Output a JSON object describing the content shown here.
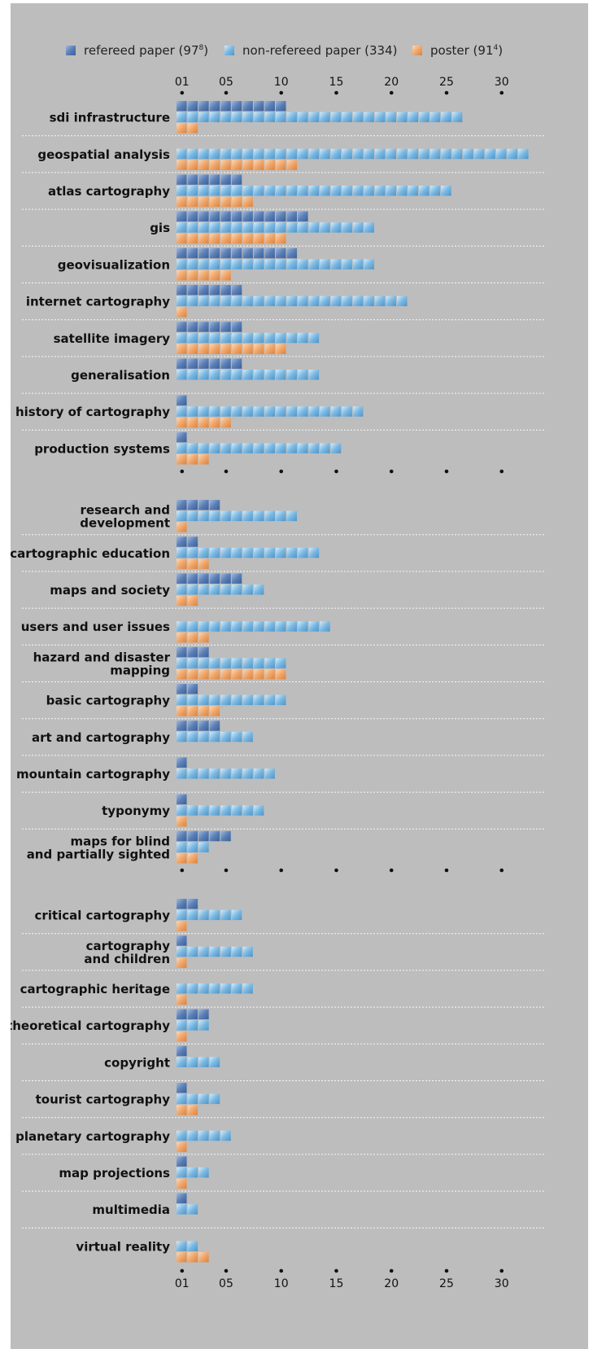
{
  "chart_data": {
    "type": "bar",
    "orientation": "horizontal",
    "legend_position": "top",
    "grid": false,
    "xlim": [
      0,
      32
    ],
    "x_ticks": [
      "01",
      "05",
      "10",
      "15",
      "20",
      "25",
      "30"
    ],
    "x_tick_values": [
      1,
      5,
      10,
      15,
      20,
      25,
      30
    ],
    "series": [
      {
        "name": "refereed paper",
        "legend_count": "97",
        "legend_sup": "8",
        "color": "#5a7fb6"
      },
      {
        "name": "non-refereed paper",
        "legend_count": "334",
        "legend_sup": "",
        "color": "#7ab8e2"
      },
      {
        "name": "poster",
        "legend_count": "91",
        "legend_sup": "4",
        "color": "#f0a66a"
      }
    ],
    "categories": [
      {
        "label": [
          "sdi infrastructure"
        ],
        "values": [
          10,
          26,
          2
        ]
      },
      {
        "label": [
          "geospatial analysis"
        ],
        "values": [
          0,
          32,
          11
        ]
      },
      {
        "label": [
          "atlas cartography"
        ],
        "values": [
          6,
          25,
          7
        ]
      },
      {
        "label": [
          "gis"
        ],
        "values": [
          12,
          18,
          10
        ]
      },
      {
        "label": [
          "geovisualization"
        ],
        "values": [
          11,
          18,
          5
        ]
      },
      {
        "label": [
          "internet cartography"
        ],
        "values": [
          6,
          21,
          1
        ]
      },
      {
        "label": [
          "satellite imagery"
        ],
        "values": [
          6,
          13,
          10
        ]
      },
      {
        "label": [
          "generalisation"
        ],
        "values": [
          6,
          13,
          0
        ]
      },
      {
        "label": [
          "history of cartography"
        ],
        "values": [
          1,
          17,
          5
        ]
      },
      {
        "label": [
          "production systems"
        ],
        "values": [
          1,
          15,
          3
        ]
      },
      {
        "label": [
          "research and",
          "development"
        ],
        "values": [
          4,
          11,
          1
        ]
      },
      {
        "label": [
          "cartographic education"
        ],
        "values": [
          2,
          13,
          3
        ]
      },
      {
        "label": [
          "maps and society"
        ],
        "values": [
          6,
          8,
          2
        ]
      },
      {
        "label": [
          "users and user issues"
        ],
        "values": [
          0,
          14,
          3
        ]
      },
      {
        "label": [
          "hazard and disaster",
          "mapping"
        ],
        "values": [
          3,
          10,
          10
        ]
      },
      {
        "label": [
          "basic cartography"
        ],
        "values": [
          2,
          10,
          4
        ]
      },
      {
        "label": [
          "art and cartography"
        ],
        "values": [
          4,
          7,
          0
        ]
      },
      {
        "label": [
          "mountain cartography"
        ],
        "values": [
          1,
          9,
          0
        ]
      },
      {
        "label": [
          "typonymy"
        ],
        "values": [
          1,
          8,
          1
        ]
      },
      {
        "label": [
          "maps for blind",
          "and partially sighted"
        ],
        "values": [
          5,
          3,
          2
        ]
      },
      {
        "label": [
          "critical cartography"
        ],
        "values": [
          2,
          6,
          1
        ]
      },
      {
        "label": [
          "cartography",
          "and children"
        ],
        "values": [
          1,
          7,
          1
        ]
      },
      {
        "label": [
          "cartographic heritage"
        ],
        "values": [
          0,
          7,
          1
        ]
      },
      {
        "label": [
          "theoretical cartography"
        ],
        "values": [
          3,
          3,
          1
        ]
      },
      {
        "label": [
          "copyright"
        ],
        "values": [
          1,
          4,
          0
        ]
      },
      {
        "label": [
          "tourist cartography"
        ],
        "values": [
          1,
          4,
          2
        ]
      },
      {
        "label": [
          "planetary cartography"
        ],
        "values": [
          0,
          5,
          1
        ]
      },
      {
        "label": [
          "map projections"
        ],
        "values": [
          1,
          3,
          1
        ]
      },
      {
        "label": [
          "multimedia"
        ],
        "values": [
          1,
          2,
          0
        ]
      },
      {
        "label": [
          "virtual reality"
        ],
        "values": [
          0,
          2,
          3
        ]
      }
    ]
  }
}
